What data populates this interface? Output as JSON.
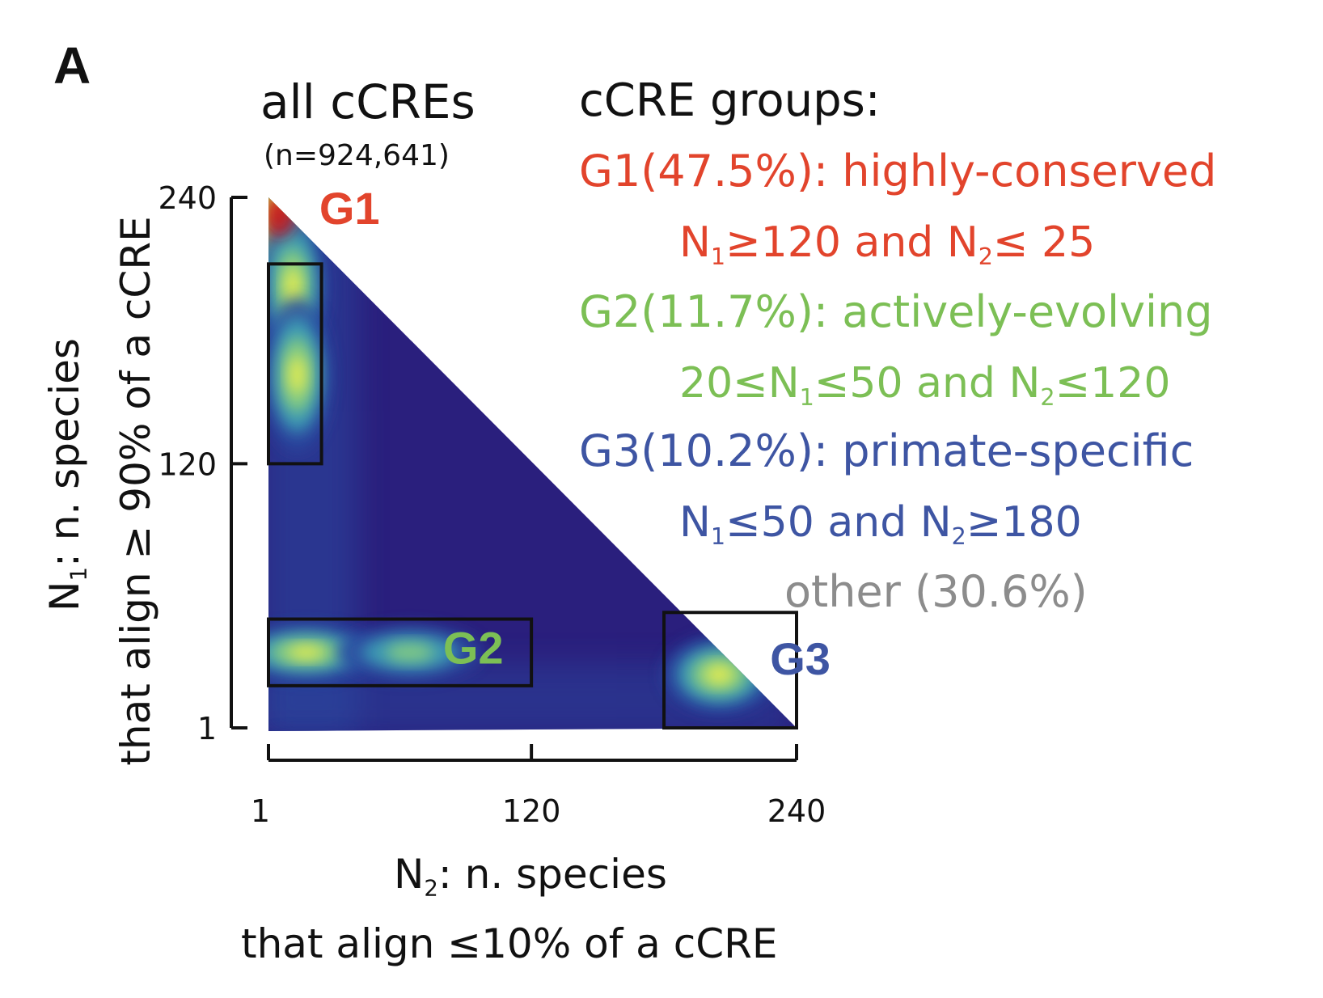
{
  "panel_label": "A",
  "colors": {
    "g1": "#e2442c",
    "g2": "#7cbf55",
    "g3": "#3e55a3",
    "other": "#8c8c8c",
    "ink": "#111111"
  },
  "chart_data": {
    "type": "heatmap",
    "title": "all cCREs",
    "subtitle": "(n=924,641)",
    "xlabel_line1": "n. species",
    "xlabel_line2": "that align ≤10% of a cCRE",
    "ylabel_line1": "n. species",
    "ylabel_line2": "that align ≥ 90% of a cCRE",
    "x_ticks": [
      "1",
      "120",
      "240"
    ],
    "y_ticks": [
      "1",
      "120",
      "240"
    ],
    "x_tick_values": [
      1,
      120,
      240
    ],
    "y_tick_values": [
      1,
      120,
      240
    ],
    "xlim": [
      1,
      240
    ],
    "ylim": [
      1,
      240
    ],
    "colormap": [
      "#2a1f7d",
      "#2c4aa0",
      "#3fa6b8",
      "#8fd47a",
      "#f4f04a",
      "#f08a2a",
      "#c81f1f"
    ],
    "density_peaks": [
      {
        "N2": 7,
        "N1": 230,
        "level": 1.0
      },
      {
        "N2": 12,
        "N1": 200,
        "level": 0.72
      },
      {
        "N2": 14,
        "N1": 160,
        "level": 0.6
      },
      {
        "N2": 18,
        "N1": 35,
        "level": 0.62
      },
      {
        "N2": 65,
        "N1": 35,
        "level": 0.48
      },
      {
        "N2": 205,
        "N1": 25,
        "level": 0.68
      }
    ],
    "boxes": [
      {
        "name": "G1",
        "N2_range": [
          1,
          25
        ],
        "N1_range": [
          120,
          210
        ]
      },
      {
        "name": "G2",
        "N2_range": [
          1,
          120
        ],
        "N1_range": [
          20,
          50
        ]
      },
      {
        "name": "G3",
        "N2_range": [
          180,
          240
        ],
        "N1_range": [
          1,
          53
        ]
      }
    ],
    "box_labels": [
      "G1",
      "G2",
      "G3"
    ]
  },
  "legend": {
    "heading": "cCRE groups:",
    "groups": [
      {
        "label": "G1(47.5%): highly-conserved",
        "criteria": {
          "p1": "N",
          "s1": "1",
          "p2": "≥120 and N",
          "s2": "2",
          "p3": "≤ 25"
        }
      },
      {
        "label": "G2(11.7%): actively-evolving",
        "criteria": {
          "p1": "20≤N",
          "s1": "1",
          "p2": "≤50 and N",
          "s2": "2",
          "p3": "≤120"
        }
      },
      {
        "label": "G3(10.2%): primate-specific",
        "criteria": {
          "p1": "N",
          "s1": "1",
          "p2": "≤50 and N",
          "s2": "2",
          "p3": "≥180"
        }
      }
    ],
    "other": "other (30.6%)"
  },
  "axis_symbols": {
    "y": {
      "base": "N",
      "sub": "1",
      "sep": ": "
    },
    "x": {
      "base": "N",
      "sub": "2",
      "sep": ": "
    }
  }
}
